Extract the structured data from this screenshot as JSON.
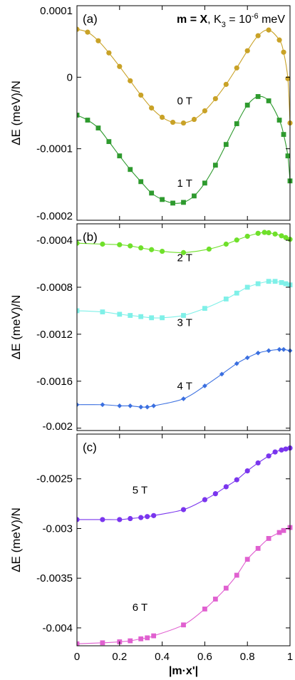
{
  "figure": {
    "xlabel": "|m·x'|",
    "x_ticks": [
      "0",
      "0.2",
      "0.4",
      "0.6",
      "0.8",
      "1"
    ]
  },
  "chart_data": [
    {
      "type": "line",
      "panel_label": "(a)",
      "annotation": {
        "prefix": "m = X",
        "suffix": ", K",
        "sub": "3",
        "mid": " = 10",
        "sup": "-6",
        "tail": " meV"
      },
      "ylabel": "ΔE (meV)/N",
      "xlim": [
        0,
        1
      ],
      "ylim": [
        -0.0002,
        0.0001
      ],
      "y_ticks": [
        {
          "value": 0.0001,
          "label": "0.0001"
        },
        {
          "value": 0,
          "label": "0"
        },
        {
          "value": -0.0001,
          "label": "-0.0001"
        },
        {
          "value": -0.0002,
          "label": "-0.0002"
        }
      ],
      "series": [
        {
          "name": "0 T",
          "color": "#C9A227",
          "marker": "circle",
          "label_pos": [
            0.47,
            -3.8e-05
          ],
          "x": [
            0,
            0.05,
            0.1,
            0.15,
            0.2,
            0.25,
            0.3,
            0.35,
            0.4,
            0.45,
            0.5,
            0.55,
            0.6,
            0.65,
            0.7,
            0.75,
            0.8,
            0.85,
            0.9,
            0.95,
            0.97,
            0.99,
            1.0
          ],
          "y": [
            6.7e-05,
            6.3e-05,
            5.1e-05,
            3.4e-05,
            1.5e-05,
            -5e-06,
            -2.5e-05,
            -4.3e-05,
            -5.6e-05,
            -6.3e-05,
            -6.4e-05,
            -5.9e-05,
            -4.7e-05,
            -3e-05,
            -1e-05,
            1.3e-05,
            3.7e-05,
            5.8e-05,
            6.6e-05,
            5.2e-05,
            3.5e-05,
            -2e-06,
            -6.4e-05
          ]
        },
        {
          "name": "1 T",
          "color": "#2E9A2E",
          "marker": "square",
          "label_pos": [
            0.47,
            -0.000153
          ],
          "x": [
            0,
            0.05,
            0.1,
            0.15,
            0.2,
            0.25,
            0.3,
            0.35,
            0.4,
            0.45,
            0.5,
            0.55,
            0.6,
            0.65,
            0.7,
            0.75,
            0.8,
            0.85,
            0.9,
            0.95,
            0.97,
            0.99,
            1.0
          ],
          "y": [
            -5.3e-05,
            -6e-05,
            -7.1e-05,
            -9e-05,
            -0.00011,
            -0.000129,
            -0.000146,
            -0.000162,
            -0.000171,
            -0.000176,
            -0.000175,
            -0.000166,
            -0.000148,
            -0.000123,
            -9.4e-05,
            -6.5e-05,
            -3.9e-05,
            -2.7e-05,
            -3.3e-05,
            -6e-05,
            -8e-05,
            -0.00011,
            -0.000145
          ]
        }
      ]
    },
    {
      "type": "line",
      "panel_label": "(b)",
      "ylabel": "ΔE (meV)/N",
      "xlim": [
        0,
        1
      ],
      "ylim": [
        -0.00202,
        -0.00026
      ],
      "y_ticks": [
        {
          "value": -0.0004,
          "label": "-0.0004"
        },
        {
          "value": -0.0008,
          "label": "-0.0008"
        },
        {
          "value": -0.0012,
          "label": "-0.0012"
        },
        {
          "value": -0.0016,
          "label": "-0.0016"
        },
        {
          "value": -0.002,
          "label": "-0.002"
        }
      ],
      "series": [
        {
          "name": "2 T",
          "color": "#6FE02A",
          "marker": "circle",
          "label_pos": [
            0.47,
            -0.00058
          ],
          "x": [
            0,
            0.12,
            0.2,
            0.25,
            0.3,
            0.35,
            0.4,
            0.5,
            0.62,
            0.7,
            0.75,
            0.8,
            0.85,
            0.88,
            0.9,
            0.93,
            0.96,
            0.98,
            1.0
          ],
          "y": [
            -0.000425,
            -0.000433,
            -0.000438,
            -0.000448,
            -0.000465,
            -0.00048,
            -0.000494,
            -0.000505,
            -0.000475,
            -0.000433,
            -0.000398,
            -0.000366,
            -0.000341,
            -0.000333,
            -0.000336,
            -0.000347,
            -0.000362,
            -0.000377,
            -0.000392
          ]
        },
        {
          "name": "3 T",
          "color": "#7FF0E8",
          "marker": "square",
          "label_pos": [
            0.47,
            -0.00113
          ],
          "x": [
            0,
            0.12,
            0.2,
            0.25,
            0.3,
            0.35,
            0.4,
            0.5,
            0.6,
            0.7,
            0.75,
            0.8,
            0.85,
            0.9,
            0.93,
            0.96,
            0.98,
            1.0
          ],
          "y": [
            -0.001,
            -0.00101,
            -0.00103,
            -0.00104,
            -0.00105,
            -0.00106,
            -0.00106,
            -0.00104,
            -0.00098,
            -0.0009,
            -0.00085,
            -0.0008,
            -0.00077,
            -0.00075,
            -0.00075,
            -0.00076,
            -0.00077,
            -0.00078
          ]
        },
        {
          "name": "4 T",
          "color": "#3A6FE0",
          "marker": "diamond",
          "label_pos": [
            0.47,
            -0.00167
          ],
          "x": [
            0,
            0.12,
            0.2,
            0.25,
            0.3,
            0.33,
            0.36,
            0.5,
            0.6,
            0.68,
            0.75,
            0.8,
            0.85,
            0.9,
            0.95,
            0.97,
            1.0
          ],
          "y": [
            -0.0018,
            -0.0018,
            -0.00181,
            -0.00181,
            -0.00182,
            -0.00182,
            -0.00181,
            -0.00175,
            -0.00164,
            -0.00154,
            -0.00145,
            -0.0014,
            -0.00136,
            -0.00134,
            -0.00133,
            -0.00133,
            -0.00134
          ]
        }
      ]
    },
    {
      "type": "line",
      "panel_label": "(c)",
      "ylabel": "ΔE (meV)/N",
      "xlim": [
        0,
        1
      ],
      "ylim": [
        -0.00418,
        -0.00205
      ],
      "y_ticks": [
        {
          "value": -0.0025,
          "label": "-0.0025"
        },
        {
          "value": -0.003,
          "label": "-0.003"
        },
        {
          "value": -0.0035,
          "label": "-0.0035"
        },
        {
          "value": -0.004,
          "label": "-0.004"
        }
      ],
      "series": [
        {
          "name": "5 T",
          "color": "#7A35EE",
          "marker": "circle",
          "label_pos": [
            0.26,
            -0.00265
          ],
          "x": [
            0,
            0.12,
            0.2,
            0.25,
            0.3,
            0.33,
            0.36,
            0.5,
            0.6,
            0.65,
            0.7,
            0.75,
            0.8,
            0.85,
            0.9,
            0.93,
            0.96,
            0.98,
            1.0
          ],
          "y": [
            -0.00291,
            -0.00291,
            -0.00291,
            -0.0029,
            -0.00289,
            -0.00288,
            -0.00287,
            -0.00281,
            -0.00271,
            -0.00265,
            -0.00258,
            -0.00251,
            -0.00242,
            -0.00234,
            -0.00227,
            -0.00223,
            -0.00221,
            -0.0022,
            -0.00219
          ]
        },
        {
          "name": "6 T",
          "color": "#E060D0",
          "marker": "square",
          "label_pos": [
            0.26,
            -0.00383
          ],
          "x": [
            0,
            0.12,
            0.2,
            0.25,
            0.3,
            0.33,
            0.36,
            0.5,
            0.6,
            0.65,
            0.7,
            0.75,
            0.8,
            0.85,
            0.9,
            0.95,
            0.97,
            1.0
          ],
          "y": [
            -0.00416,
            -0.00415,
            -0.00414,
            -0.00413,
            -0.00411,
            -0.0041,
            -0.00408,
            -0.00397,
            -0.00381,
            -0.00371,
            -0.0036,
            -0.00347,
            -0.00331,
            -0.0032,
            -0.0031,
            -0.00304,
            -0.00302,
            -0.00299
          ]
        }
      ]
    }
  ]
}
